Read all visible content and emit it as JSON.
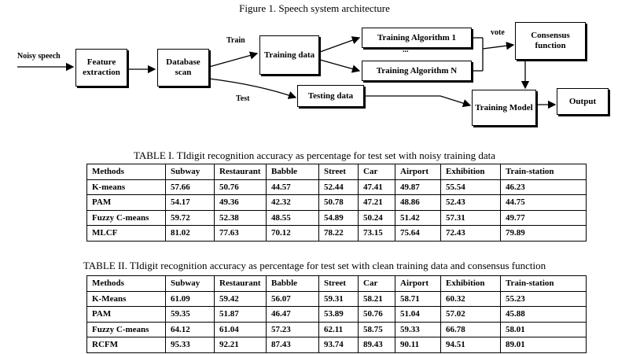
{
  "figure": {
    "caption": "Figure 1. Speech system architecture",
    "input_label": "Noisy speech",
    "nodes": [
      {
        "label": "Feature extraction"
      },
      {
        "label": "Database scan"
      },
      {
        "label": "Training data"
      },
      {
        "label": "Training Algorithm 1"
      },
      {
        "label": "Training Algorithm N"
      },
      {
        "label": "Consensus function"
      },
      {
        "label": "Testing data"
      },
      {
        "label": "Training Model"
      },
      {
        "label": "Output"
      }
    ],
    "edge_labels": [
      "Train",
      "Test",
      "vote"
    ],
    "ellipsis": "..."
  },
  "tables": [
    {
      "caption": "TABLE I. TIdigit recognition accuracy as percentage for test set with noisy training data",
      "header": [
        "Methods",
        "Subway",
        "Restaurant",
        "Babble",
        "Street",
        "Car",
        "Airport",
        "Exhibition",
        "Train-station"
      ],
      "rows": [
        [
          "K-means",
          "57.66",
          "50.76",
          "44.57",
          "52.44",
          "47.41",
          "49.87",
          "55.54",
          "46.23"
        ],
        [
          "PAM",
          "54.17",
          "49.36",
          "42.32",
          "50.78",
          "47.21",
          "48.86",
          "52.43",
          "44.75"
        ],
        [
          "Fuzzy C-means",
          "59.72",
          "52.38",
          "48.55",
          "54.89",
          "50.24",
          "51.42",
          "57.31",
          "49.77"
        ],
        [
          "MLCF",
          "81.02",
          "77.63",
          "70.12",
          "78.22",
          "73.15",
          "75.64",
          "72.43",
          "79.89"
        ]
      ]
    },
    {
      "caption": "TABLE II. TIdigit recognition accuracy as percentage for test set with clean training data and consensus function",
      "header": [
        "Methods",
        "Subway",
        "Restaurant",
        "Babble",
        "Street",
        "Car",
        "Airport",
        "Exhibition",
        "Train-station"
      ],
      "rows": [
        [
          "K-Means",
          "61.09",
          "59.42",
          "56.07",
          "59.31",
          "58.21",
          "58.71",
          "60.32",
          "55.23"
        ],
        [
          "PAM",
          "59.35",
          "51.87",
          "46.47",
          "53.89",
          "50.76",
          "51.04",
          "57.02",
          "45.88"
        ],
        [
          "Fuzzy C-means",
          "64.12",
          "61.04",
          "57.23",
          "62.11",
          "58.75",
          "59.33",
          "66.78",
          "58.01"
        ],
        [
          "RCFM",
          "95.33",
          "92.21",
          "87.43",
          "93.74",
          "89.43",
          "90.11",
          "94.51",
          "89.01"
        ]
      ]
    }
  ]
}
